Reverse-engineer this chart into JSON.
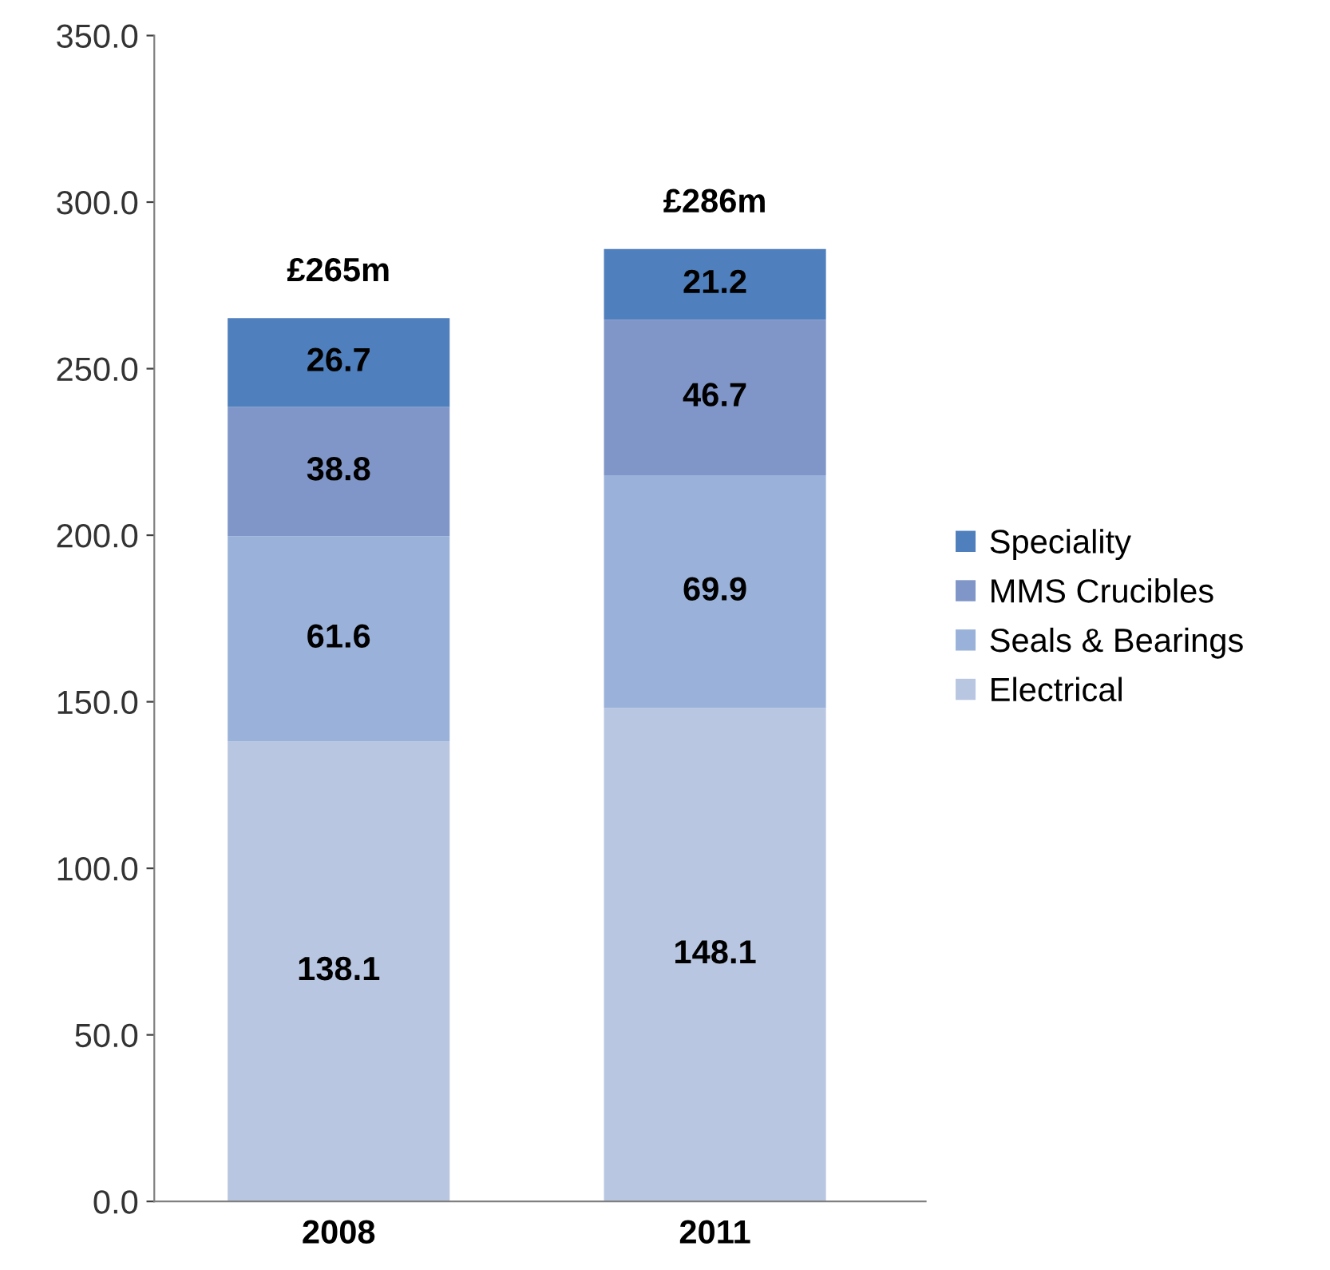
{
  "chart_data": {
    "type": "bar",
    "stacked": true,
    "categories": [
      "2008",
      "2011"
    ],
    "series": [
      {
        "name": "Electrical",
        "color": "#b8c6e1",
        "values": [
          138.1,
          148.1
        ]
      },
      {
        "name": "Seals & Bearings",
        "color": "#9ab2da",
        "values": [
          61.6,
          69.9
        ]
      },
      {
        "name": "MMS Crucibles",
        "color": "#8096c8",
        "values": [
          38.8,
          46.7
        ]
      },
      {
        "name": "Speciality",
        "color": "#4f7fbc",
        "values": [
          26.7,
          21.2
        ]
      }
    ],
    "totals": [
      "£265m",
      "£286m"
    ],
    "data_labels": true,
    "ylim": [
      0,
      350
    ],
    "yticks": [
      {
        "value": 0,
        "label": "0.0"
      },
      {
        "value": 50,
        "label": "50.0"
      },
      {
        "value": 100,
        "label": "100.0"
      },
      {
        "value": 150,
        "label": "150.0"
      },
      {
        "value": 200,
        "label": "200.0"
      },
      {
        "value": 250,
        "label": "250.0"
      },
      {
        "value": 300,
        "label": "300.0"
      },
      {
        "value": 350,
        "label": "350.0"
      }
    ],
    "grid": false,
    "legend": "right"
  }
}
